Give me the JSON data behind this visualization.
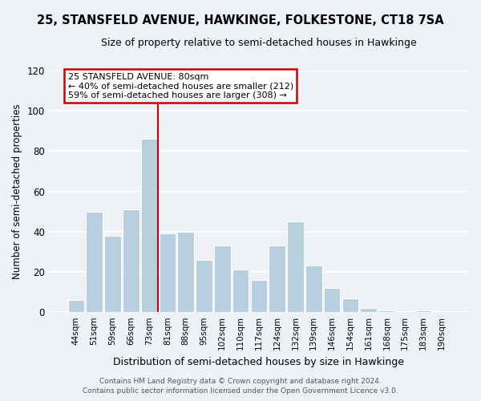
{
  "title": "25, STANSFELD AVENUE, HAWKINGE, FOLKESTONE, CT18 7SA",
  "subtitle": "Size of property relative to semi-detached houses in Hawkinge",
  "xlabel": "Distribution of semi-detached houses by size in Hawkinge",
  "ylabel": "Number of semi-detached properties",
  "categories": [
    "44sqm",
    "51sqm",
    "59sqm",
    "66sqm",
    "73sqm",
    "81sqm",
    "88sqm",
    "95sqm",
    "102sqm",
    "110sqm",
    "117sqm",
    "124sqm",
    "132sqm",
    "139sqm",
    "146sqm",
    "154sqm",
    "161sqm",
    "168sqm",
    "175sqm",
    "183sqm",
    "190sqm"
  ],
  "values": [
    6,
    50,
    38,
    51,
    86,
    39,
    40,
    26,
    33,
    21,
    16,
    33,
    45,
    23,
    12,
    7,
    2,
    1,
    0,
    1,
    0
  ],
  "bar_color": "#b8cfe0",
  "vline_color": "#cc0000",
  "vline_index": 4.5,
  "annotation_line1": "25 STANSFELD AVENUE: 80sqm",
  "annotation_line2": "← 40% of semi-detached houses are smaller (212)",
  "annotation_line3": "59% of semi-detached houses are larger (308) →",
  "annotation_box_color": "#cc0000",
  "annotation_box_facecolor": "white",
  "ylim": [
    0,
    120
  ],
  "yticks": [
    0,
    20,
    40,
    60,
    80,
    100,
    120
  ],
  "footer_line1": "Contains HM Land Registry data © Crown copyright and database right 2024.",
  "footer_line2": "Contains public sector information licensed under the Open Government Licence v3.0.",
  "background_color": "#eef2f7",
  "grid_color": "white",
  "title_fontsize": 10.5,
  "subtitle_fontsize": 9
}
